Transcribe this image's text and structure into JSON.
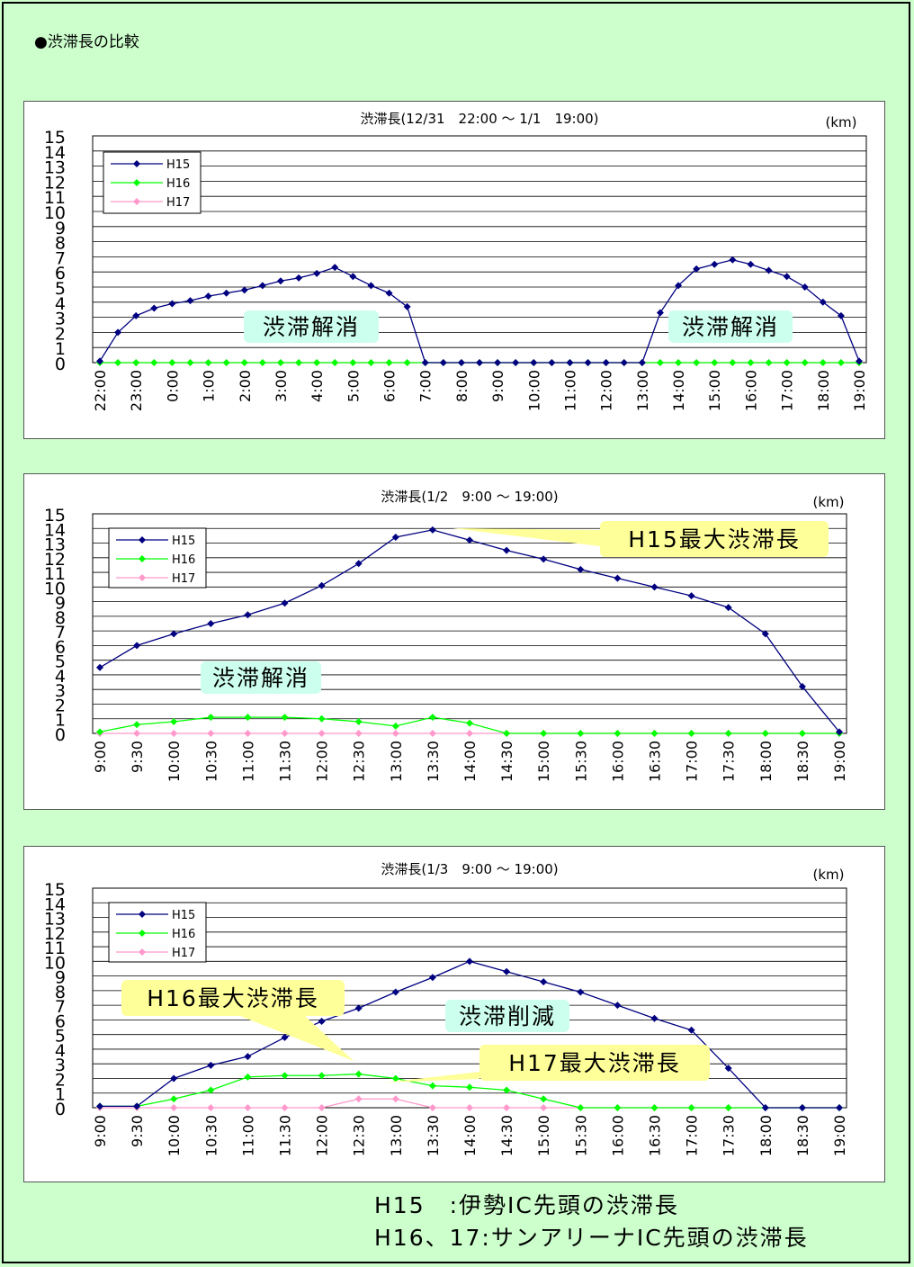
{
  "page": {
    "heading": "●渋滞長の比較",
    "footnote_lines": [
      "H15　:伊勢IC先頭の渋滞長",
      "H16、17:サンアリーナIC先頭の渋滞長"
    ]
  },
  "chart_data": [
    {
      "type": "line",
      "title": "渋滞長(12/31　22:00 ～ 1/1　19:00)",
      "unit": "(km)",
      "ylim": [
        0,
        15
      ],
      "y_ticks": [
        0,
        1,
        2,
        3,
        4,
        5,
        6,
        7,
        8,
        9,
        10,
        11,
        12,
        13,
        14,
        15
      ],
      "grid": true,
      "legend_position": "top-left",
      "x_tick_labels": [
        "22:00",
        "23:00",
        "0:00",
        "1:00",
        "2:00",
        "3:00",
        "4:00",
        "5:00",
        "6:00",
        "7:00",
        "8:00",
        "9:00",
        "10:00",
        "11:00",
        "12:00",
        "13:00",
        "14:00",
        "15:00",
        "16:00",
        "17:00",
        "18:00",
        "19:00"
      ],
      "categories": [
        "22:00",
        "22:30",
        "23:00",
        "23:30",
        "0:00",
        "0:30",
        "1:00",
        "1:30",
        "2:00",
        "2:30",
        "3:00",
        "3:30",
        "4:00",
        "4:30",
        "5:00",
        "5:30",
        "6:00",
        "6:30",
        "7:00",
        "7:30",
        "8:00",
        "8:30",
        "9:00",
        "9:30",
        "10:00",
        "10:30",
        "11:00",
        "11:30",
        "12:00",
        "12:30",
        "13:00",
        "13:30",
        "14:00",
        "14:30",
        "15:00",
        "15:30",
        "16:00",
        "16:30",
        "17:00",
        "17:30",
        "18:00",
        "18:30",
        "19:00"
      ],
      "series": [
        {
          "name": "H15",
          "color": "#000080",
          "marker": "diamond",
          "values": [
            0.1,
            2.0,
            3.1,
            3.6,
            3.9,
            4.1,
            4.4,
            4.6,
            4.8,
            5.1,
            5.4,
            5.6,
            5.9,
            6.3,
            5.7,
            5.1,
            4.6,
            3.7,
            0,
            0,
            0,
            0,
            0,
            0,
            0,
            0,
            0,
            0,
            0,
            0,
            0,
            3.3,
            5.1,
            6.2,
            6.5,
            6.8,
            6.5,
            6.1,
            5.7,
            5.0,
            4.0,
            3.1,
            0.1
          ]
        },
        {
          "name": "H16",
          "color": "#00ff00",
          "marker": "diamond",
          "values": [
            0,
            0,
            0,
            0,
            0,
            0,
            0,
            0,
            0,
            0,
            0,
            0,
            0,
            0,
            0,
            0,
            0,
            0,
            0,
            0,
            0,
            0,
            0,
            0,
            0,
            0,
            0,
            0,
            0,
            0,
            0,
            0,
            0,
            0,
            0,
            0,
            0,
            0,
            0,
            0,
            0,
            0,
            0
          ]
        },
        {
          "name": "H17",
          "color": "#ff99cc",
          "marker": "diamond",
          "values": [
            0,
            0,
            0,
            0,
            0,
            0,
            0,
            0,
            0,
            0,
            0,
            0,
            0,
            0,
            0,
            0,
            0,
            0,
            0,
            0,
            0,
            0,
            0,
            0,
            0,
            0,
            0,
            0,
            0,
            0,
            0,
            0,
            0,
            0,
            0,
            0,
            0,
            0,
            0,
            0,
            0,
            0,
            0
          ]
        }
      ],
      "annotations": [
        {
          "text": "渋滞解消",
          "style": "teal"
        },
        {
          "text": "渋滞解消",
          "style": "teal"
        }
      ]
    },
    {
      "type": "line",
      "title": "渋滞長(1/2　9:00 ～ 19:00)",
      "unit": "(km)",
      "ylim": [
        0,
        15
      ],
      "y_ticks": [
        0,
        1,
        2,
        3,
        4,
        5,
        6,
        7,
        8,
        9,
        10,
        11,
        12,
        13,
        14,
        15
      ],
      "grid": true,
      "legend_position": "top-left",
      "x_tick_labels": [
        "9:00",
        "9:30",
        "10:00",
        "10:30",
        "11:00",
        "11:30",
        "12:00",
        "12:30",
        "13:00",
        "13:30",
        "14:00",
        "14:30",
        "15:00",
        "15:30",
        "16:00",
        "16:30",
        "17:00",
        "17:30",
        "18:00",
        "18:30",
        "19:00"
      ],
      "categories": [
        "9:00",
        "9:30",
        "10:00",
        "10:30",
        "11:00",
        "11:30",
        "12:00",
        "12:30",
        "13:00",
        "13:30",
        "14:00",
        "14:30",
        "15:00",
        "15:30",
        "16:00",
        "16:30",
        "17:00",
        "17:30",
        "18:00",
        "18:30",
        "19:00"
      ],
      "series": [
        {
          "name": "H15",
          "color": "#000080",
          "marker": "diamond",
          "values": [
            4.5,
            6.0,
            6.8,
            7.5,
            8.1,
            8.9,
            10.1,
            11.6,
            13.4,
            13.9,
            13.2,
            12.5,
            11.9,
            11.2,
            10.6,
            10.0,
            9.4,
            8.6,
            6.8,
            3.2,
            0.1
          ]
        },
        {
          "name": "H16",
          "color": "#00ff00",
          "marker": "diamond",
          "values": [
            0.1,
            0.6,
            0.8,
            1.1,
            1.1,
            1.1,
            1.0,
            0.8,
            0.5,
            1.1,
            0.7,
            0,
            0,
            0,
            0,
            0,
            0,
            0,
            0,
            0,
            0
          ]
        },
        {
          "name": "H17",
          "color": "#ff99cc",
          "marker": "diamond",
          "values": [
            0,
            0,
            0,
            0,
            0,
            0,
            0,
            0,
            0,
            0,
            0,
            0,
            0,
            0,
            0,
            0,
            0,
            0,
            0,
            0,
            0
          ]
        }
      ],
      "annotations": [
        {
          "text": "H15最大渋滞長",
          "style": "yellow"
        },
        {
          "text": "渋滞解消",
          "style": "teal"
        }
      ]
    },
    {
      "type": "line",
      "title": "渋滞長(1/3　9:00 ～ 19:00)",
      "unit": "(km)",
      "ylim": [
        0,
        15
      ],
      "y_ticks": [
        0,
        1,
        2,
        3,
        4,
        5,
        6,
        7,
        8,
        9,
        10,
        11,
        12,
        13,
        14,
        15
      ],
      "grid": true,
      "legend_position": "top-left",
      "x_tick_labels": [
        "9:00",
        "9:30",
        "10:00",
        "10:30",
        "11:00",
        "11:30",
        "12:00",
        "12:30",
        "13:00",
        "13:30",
        "14:00",
        "14:30",
        "15:00",
        "15:30",
        "16:00",
        "16:30",
        "17:00",
        "17:30",
        "18:00",
        "18:30",
        "19:00"
      ],
      "categories": [
        "9:00",
        "9:30",
        "10:00",
        "10:30",
        "11:00",
        "11:30",
        "12:00",
        "12:30",
        "13:00",
        "13:30",
        "14:00",
        "14:30",
        "15:00",
        "15:30",
        "16:00",
        "16:30",
        "17:00",
        "17:30",
        "18:00",
        "18:30",
        "19:00"
      ],
      "series": [
        {
          "name": "H15",
          "color": "#000080",
          "marker": "diamond",
          "values": [
            0.1,
            0.1,
            2.0,
            2.9,
            3.5,
            4.8,
            5.9,
            6.8,
            7.9,
            8.9,
            10.0,
            9.3,
            8.6,
            7.9,
            7.0,
            6.1,
            5.3,
            2.7,
            0,
            0,
            0
          ]
        },
        {
          "name": "H16",
          "color": "#00ff00",
          "marker": "diamond",
          "values": [
            0.1,
            0.1,
            0.6,
            1.2,
            2.1,
            2.2,
            2.2,
            2.3,
            2.0,
            1.5,
            1.4,
            1.2,
            0.6,
            0,
            0,
            0,
            0,
            0,
            0,
            0,
            0
          ]
        },
        {
          "name": "H17",
          "color": "#ff99cc",
          "marker": "diamond",
          "values": [
            0,
            0,
            0,
            0,
            0,
            0,
            0,
            0.6,
            0.6,
            0,
            0,
            0,
            0,
            0,
            0,
            0,
            0,
            0,
            0,
            0,
            0
          ]
        }
      ],
      "annotations": [
        {
          "text": "H16最大渋滞長",
          "style": "yellow"
        },
        {
          "text": "渋滞削減",
          "style": "teal"
        },
        {
          "text": "H17最大渋滞長",
          "style": "yellow"
        }
      ]
    }
  ]
}
